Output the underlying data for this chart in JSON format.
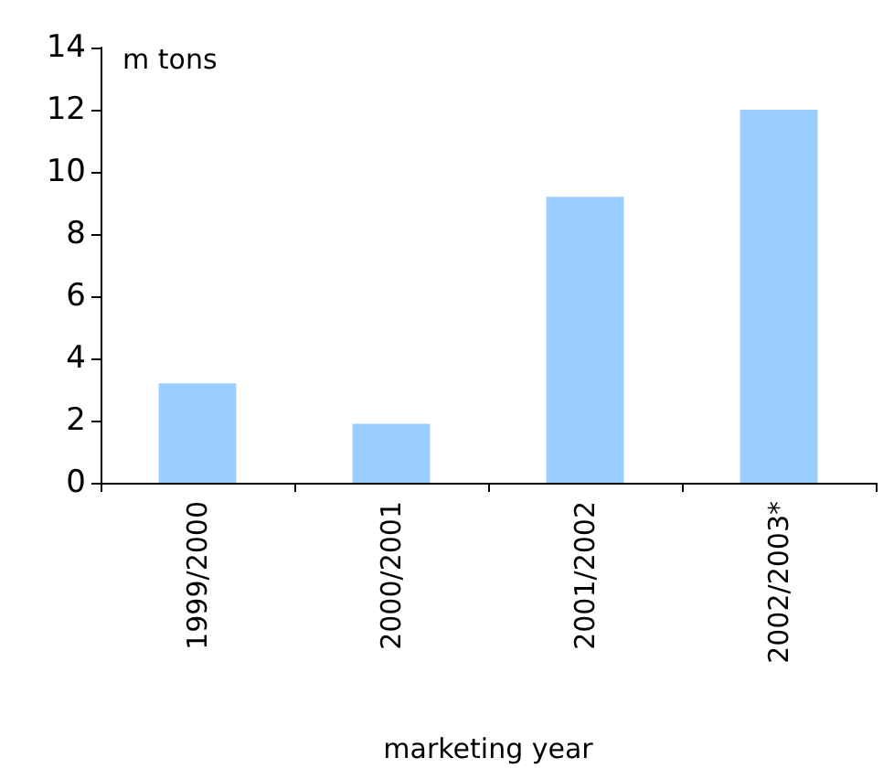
{
  "chart_data": {
    "type": "bar",
    "ylabel": "m tons",
    "xlabel": "marketing year",
    "categories": [
      "1999/2000",
      "2000/2001",
      "2001/2002",
      "2002/2003*"
    ],
    "values": [
      3.2,
      1.9,
      9.2,
      12.0
    ],
    "color": "#99ccff",
    "ylim": [
      0,
      14
    ],
    "yticks": [
      0,
      2,
      4,
      6,
      8,
      10,
      12,
      14
    ],
    "grid": false
  }
}
